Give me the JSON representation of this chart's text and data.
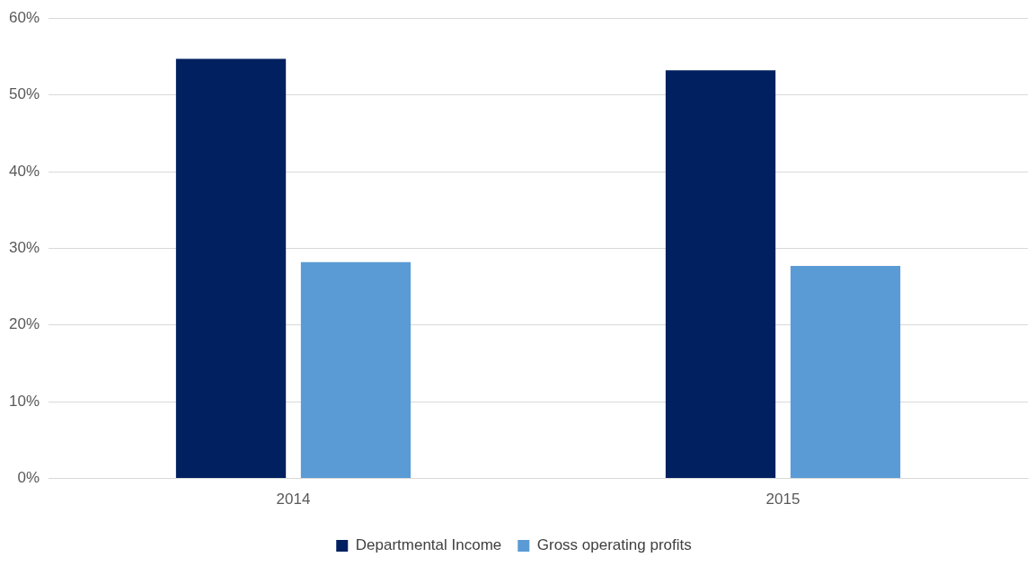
{
  "chart_data": {
    "type": "bar",
    "categories": [
      "2014",
      "2015"
    ],
    "series": [
      {
        "name": "Departmental Income",
        "color": "#002060",
        "values": [
          54.7,
          53.2
        ]
      },
      {
        "name": "Gross operating profits",
        "color": "#5b9bd5",
        "values": [
          28.2,
          27.7
        ]
      }
    ],
    "ylim": [
      0,
      60
    ],
    "yticks": [
      {
        "value": 0,
        "label": "0%"
      },
      {
        "value": 10,
        "label": "10%"
      },
      {
        "value": 20,
        "label": "20%"
      },
      {
        "value": 30,
        "label": "30%"
      },
      {
        "value": 40,
        "label": "40%"
      },
      {
        "value": 50,
        "label": "50%"
      },
      {
        "value": 60,
        "label": "60%"
      }
    ],
    "grid": "y",
    "legend": "bottom"
  }
}
